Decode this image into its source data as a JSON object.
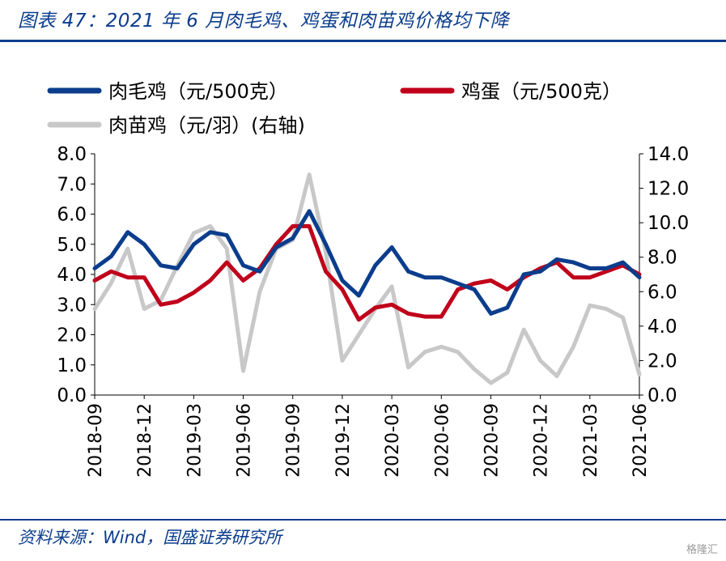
{
  "title": "图表 47：2021 年 6 月肉毛鸡、鸡蛋和肉苗鸡价格均下降",
  "source": "资料来源：Wind，国盛证券研究所",
  "watermark": "格隆汇",
  "colors": {
    "broiler": "#0b3d8c",
    "egg": "#c0001a",
    "chick": "#c8c8c8",
    "accent": "#0b3d8c"
  },
  "chart_data": {
    "type": "line",
    "legend_position": "top-left",
    "grid": false,
    "x_ticks": [
      "2018-09",
      "2018-12",
      "2019-03",
      "2019-06",
      "2019-09",
      "2019-12",
      "2020-03",
      "2020-06",
      "2020-09",
      "2020-12",
      "2021-03",
      "2021-06"
    ],
    "xlim": [
      "2018-09",
      "2021-06"
    ],
    "y_left": {
      "ylim": [
        0,
        8
      ],
      "ticks": [
        "0.0",
        "1.0",
        "2.0",
        "3.0",
        "4.0",
        "5.0",
        "6.0",
        "7.0",
        "8.0"
      ]
    },
    "y_right": {
      "ylim": [
        0,
        14
      ],
      "ticks": [
        "0.0",
        "2.0",
        "4.0",
        "6.0",
        "8.0",
        "10.0",
        "12.0",
        "14.0"
      ]
    },
    "series": [
      {
        "name": "肉毛鸡（元/500克）",
        "axis": "left",
        "color": "#0b3d8c",
        "x": [
          "2018-09",
          "2018-10",
          "2018-11",
          "2018-12",
          "2019-01",
          "2019-02",
          "2019-03",
          "2019-04",
          "2019-05",
          "2019-06",
          "2019-07",
          "2019-08",
          "2019-09",
          "2019-10",
          "2019-11",
          "2019-12",
          "2020-01",
          "2020-02",
          "2020-03",
          "2020-04",
          "2020-05",
          "2020-06",
          "2020-07",
          "2020-08",
          "2020-09",
          "2020-10",
          "2020-11",
          "2020-12",
          "2021-01",
          "2021-02",
          "2021-03",
          "2021-04",
          "2021-05",
          "2021-06"
        ],
        "values": [
          4.2,
          4.6,
          5.4,
          5.0,
          4.3,
          4.2,
          5.0,
          5.4,
          5.3,
          4.3,
          4.1,
          4.9,
          5.2,
          6.1,
          5.0,
          3.8,
          3.3,
          4.3,
          4.9,
          4.1,
          3.9,
          3.9,
          3.7,
          3.5,
          2.7,
          2.9,
          4.0,
          4.1,
          4.5,
          4.4,
          4.2,
          4.2,
          4.4,
          3.9
        ]
      },
      {
        "name": "鸡蛋（元/500克）",
        "axis": "left",
        "color": "#c0001a",
        "x": [
          "2018-09",
          "2018-10",
          "2018-11",
          "2018-12",
          "2019-01",
          "2019-02",
          "2019-03",
          "2019-04",
          "2019-05",
          "2019-06",
          "2019-07",
          "2019-08",
          "2019-09",
          "2019-10",
          "2019-11",
          "2019-12",
          "2020-01",
          "2020-02",
          "2020-03",
          "2020-04",
          "2020-05",
          "2020-06",
          "2020-07",
          "2020-08",
          "2020-09",
          "2020-10",
          "2020-11",
          "2020-12",
          "2021-01",
          "2021-02",
          "2021-03",
          "2021-04",
          "2021-05",
          "2021-06"
        ],
        "values": [
          3.8,
          4.1,
          3.9,
          3.9,
          3.0,
          3.1,
          3.4,
          3.8,
          4.4,
          3.8,
          4.2,
          5.0,
          5.6,
          5.6,
          4.1,
          3.5,
          2.5,
          2.9,
          3.0,
          2.7,
          2.6,
          2.6,
          3.5,
          3.7,
          3.8,
          3.5,
          3.9,
          4.2,
          4.4,
          3.9,
          3.9,
          4.1,
          4.3,
          4.0
        ]
      },
      {
        "name": "肉苗鸡（元/羽）(右轴)",
        "axis": "right",
        "color": "#c8c8c8",
        "x": [
          "2018-09",
          "2018-10",
          "2018-11",
          "2018-12",
          "2019-01",
          "2019-02",
          "2019-03",
          "2019-04",
          "2019-05",
          "2019-06",
          "2019-07",
          "2019-08",
          "2019-09",
          "2019-10",
          "2019-11",
          "2019-12",
          "2020-01",
          "2020-02",
          "2020-03",
          "2020-04",
          "2020-05",
          "2020-06",
          "2020-07",
          "2020-08",
          "2020-09",
          "2020-10",
          "2020-11",
          "2020-12",
          "2021-01",
          "2021-02",
          "2021-03",
          "2021-04",
          "2021-05",
          "2021-06"
        ],
        "values": [
          5.0,
          6.5,
          8.5,
          5.0,
          5.5,
          7.5,
          9.4,
          9.8,
          8.5,
          1.4,
          6.0,
          8.5,
          9.0,
          12.8,
          8.3,
          2.0,
          3.5,
          5.0,
          6.3,
          1.6,
          2.5,
          2.8,
          2.5,
          1.5,
          0.7,
          1.3,
          3.8,
          2.0,
          1.1,
          2.8,
          5.2,
          5.0,
          4.5,
          1.2
        ]
      }
    ]
  }
}
